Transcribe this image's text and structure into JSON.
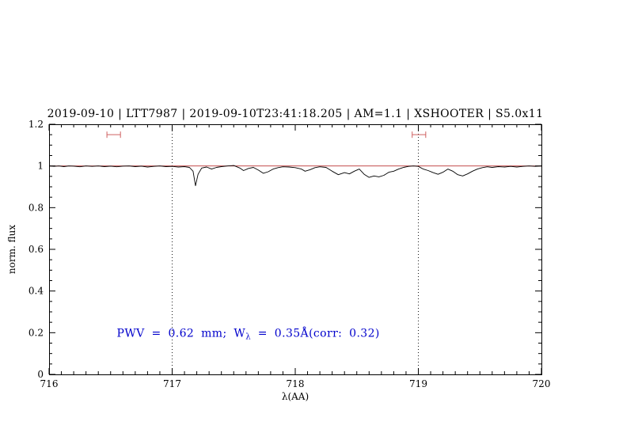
{
  "chart_data": {
    "type": "line",
    "title": "2019-09-10 | LTT7987 | 2019-09-10T23:41:18.205 | AM=1.1 | XSHOOTER | S5.0x11",
    "xlabel": "λ(AA)",
    "ylabel": "norm. flux",
    "xlim": [
      716,
      720
    ],
    "ylim": [
      0,
      1.2
    ],
    "grid": "off",
    "legend": "none",
    "x_major_ticks": [
      716,
      717,
      718,
      719,
      720
    ],
    "x_tick_labels": [
      "716",
      "717",
      "718",
      "719",
      "720"
    ],
    "x_minor_step": 0.1,
    "y_major_ticks": [
      0,
      0.2,
      0.4,
      0.6,
      0.8,
      1,
      1.2
    ],
    "y_tick_labels": [
      "0",
      "0.2",
      "0.4",
      "0.6",
      "0.8",
      "1",
      "1.2"
    ],
    "y_minor_step": 0.05,
    "dotted_vlines": [
      717,
      719
    ],
    "baseline": {
      "y": 1.0
    },
    "markers": [
      {
        "x_start": 716.47,
        "x_end": 716.58,
        "y": 1.15
      },
      {
        "x_start": 718.95,
        "x_end": 719.06,
        "y": 1.15
      }
    ],
    "annotation": {
      "text_prefix": "PWV = 0.62 mm; W",
      "text_sub": "λ",
      "text_suffix": " = 0.35Å(corr: 0.32)",
      "x": 716.55,
      "y": 0.18
    },
    "colors": {
      "title": "#0000cc",
      "annotation": "#0000cc",
      "baseline": "#bb3333",
      "marker": "#cf6060",
      "spectrum": "#000000",
      "dotted": "#000000",
      "axis": "#000000"
    },
    "series": [
      {
        "name": "spectrum",
        "x": [
          716.0,
          716.04,
          716.08,
          716.12,
          716.16,
          716.2,
          716.25,
          716.3,
          716.35,
          716.4,
          716.45,
          716.5,
          716.55,
          716.6,
          716.65,
          716.7,
          716.75,
          716.8,
          716.85,
          716.9,
          716.95,
          717.0,
          717.05,
          717.1,
          717.14,
          717.17,
          717.19,
          717.21,
          717.24,
          717.28,
          717.32,
          717.36,
          717.4,
          717.45,
          717.5,
          717.55,
          717.58,
          717.62,
          717.66,
          717.7,
          717.74,
          717.78,
          717.82,
          717.86,
          717.9,
          717.95,
          718.0,
          718.05,
          718.08,
          718.12,
          718.16,
          718.2,
          718.25,
          718.3,
          718.35,
          718.4,
          718.44,
          718.48,
          718.52,
          718.56,
          718.6,
          718.64,
          718.68,
          718.72,
          718.76,
          718.8,
          718.84,
          718.88,
          718.92,
          718.96,
          719.0,
          719.04,
          719.08,
          719.12,
          719.16,
          719.2,
          719.24,
          719.28,
          719.32,
          719.36,
          719.4,
          719.44,
          719.48,
          719.52,
          719.56,
          719.6,
          719.65,
          719.7,
          719.75,
          719.8,
          719.85,
          719.9,
          719.95,
          720.0
        ],
        "y": [
          1.0,
          0.998,
          1.0,
          0.997,
          1.0,
          0.999,
          0.996,
          1.0,
          0.998,
          1.0,
          0.997,
          0.999,
          0.996,
          0.999,
          1.0,
          0.997,
          0.999,
          0.995,
          0.998,
          1.0,
          0.997,
          0.998,
          0.995,
          0.997,
          0.993,
          0.975,
          0.905,
          0.96,
          0.99,
          0.995,
          0.985,
          0.993,
          0.997,
          1.0,
          1.002,
          0.99,
          0.978,
          0.988,
          0.993,
          0.98,
          0.965,
          0.972,
          0.985,
          0.992,
          0.996,
          0.995,
          0.992,
          0.985,
          0.975,
          0.982,
          0.992,
          0.996,
          0.993,
          0.975,
          0.958,
          0.968,
          0.962,
          0.975,
          0.985,
          0.96,
          0.945,
          0.952,
          0.948,
          0.955,
          0.97,
          0.975,
          0.985,
          0.993,
          0.998,
          1.0,
          0.998,
          0.985,
          0.978,
          0.968,
          0.96,
          0.97,
          0.985,
          0.975,
          0.958,
          0.952,
          0.962,
          0.975,
          0.985,
          0.992,
          0.996,
          0.993,
          0.997,
          0.995,
          0.998,
          0.995,
          0.998,
          1.0,
          0.998,
          1.0
        ]
      }
    ]
  }
}
